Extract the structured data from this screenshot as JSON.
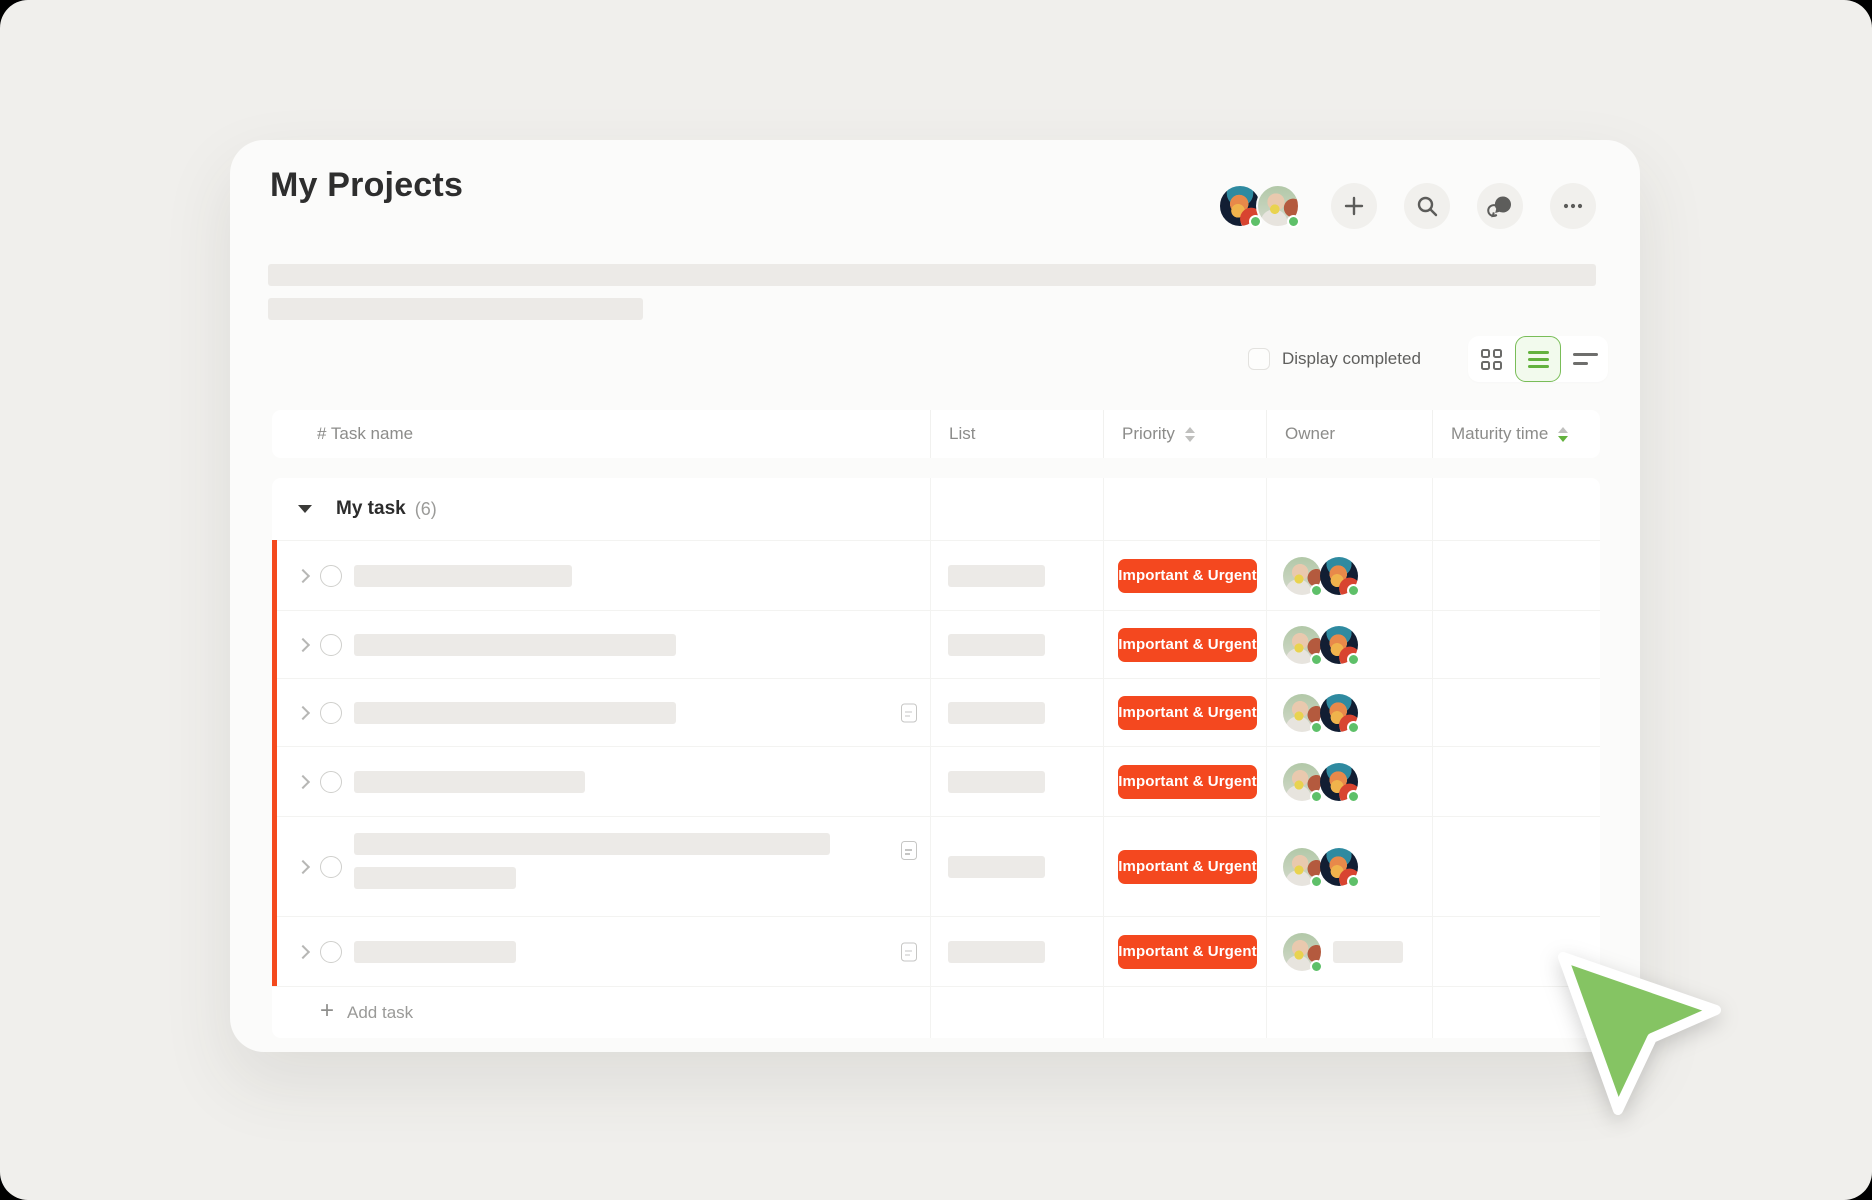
{
  "app": {
    "title": "My Projects"
  },
  "toolbar": {
    "avatars": [
      {
        "user": "user-anime",
        "online": true
      },
      {
        "user": "user-baby",
        "online": true
      }
    ],
    "buttons": [
      {
        "id": "add",
        "icon": "plus-icon"
      },
      {
        "id": "search",
        "icon": "search-icon"
      },
      {
        "id": "messages",
        "icon": "chat-icon"
      },
      {
        "id": "more",
        "icon": "ellipsis-icon"
      }
    ]
  },
  "filters": {
    "display_completed": {
      "label": "Display completed",
      "checked": false
    },
    "view_switcher": {
      "options": [
        "grid",
        "list",
        "timeline"
      ],
      "selected": "list"
    }
  },
  "table": {
    "columns": [
      {
        "id": "task",
        "label": "# Task name",
        "sortable": false
      },
      {
        "id": "list",
        "label": "List",
        "sortable": false
      },
      {
        "id": "priority",
        "label": "Priority",
        "sortable": true,
        "sort": "none"
      },
      {
        "id": "owner",
        "label": "Owner",
        "sortable": false
      },
      {
        "id": "maturity",
        "label": "Maturity time",
        "sortable": true,
        "sort": "desc"
      }
    ],
    "group": {
      "label": "My task",
      "count_display": "(6)",
      "expanded": true
    },
    "rows": [
      {
        "priority": "Important & Urgent",
        "title_bars": [
          218
        ],
        "has_note_icon": false,
        "list_bar": 97,
        "owners": [
          "user-baby",
          "user-anime"
        ]
      },
      {
        "priority": "Important & Urgent",
        "title_bars": [
          322
        ],
        "has_note_icon": false,
        "list_bar": 97,
        "owners": [
          "user-baby",
          "user-anime"
        ]
      },
      {
        "priority": "Important & Urgent",
        "title_bars": [
          322
        ],
        "has_note_icon": true,
        "list_bar": 97,
        "owners": [
          "user-baby",
          "user-anime"
        ]
      },
      {
        "priority": "Important & Urgent",
        "title_bars": [
          231
        ],
        "has_note_icon": false,
        "list_bar": 97,
        "owners": [
          "user-baby",
          "user-anime"
        ]
      },
      {
        "priority": "Important & Urgent",
        "title_bars": [
          476,
          162
        ],
        "has_note_icon": true,
        "list_bar": 97,
        "owners": [
          "user-baby",
          "user-anime"
        ]
      },
      {
        "priority": "Important & Urgent",
        "title_bars": [
          162
        ],
        "has_note_icon": true,
        "list_bar": 97,
        "owners": [
          "user-baby"
        ],
        "owner_bar": 70
      }
    ],
    "add_task_label": "Add task"
  },
  "colors": {
    "badge": "#F4481F",
    "accent_bar": "#F4491D",
    "selected_view_green": "#63B23E",
    "sort_active_green": "#63B23E",
    "presence_green": "#5EC069",
    "cursor_green": "#85C463",
    "page_background": "#F0EFEC",
    "card_background": "#FBFBFA"
  },
  "cursor": {
    "shape": "green-arrow-pointer"
  }
}
